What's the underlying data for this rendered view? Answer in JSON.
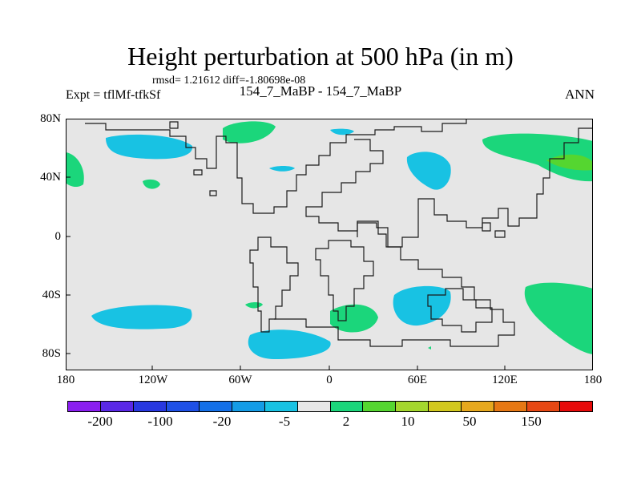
{
  "title": "Height perturbation at 500 hPa (in m)",
  "stats": "rmsd= 1.21612 diff=-1.80698e-08",
  "experiment": "Expt = tflMf-tfkSf",
  "case_label": "154_7_MaBP - 154_7_MaBP",
  "season": "ANN",
  "map": {
    "lat_labels": [
      "80N",
      "40N",
      "0",
      "40S",
      "80S"
    ],
    "lon_labels": [
      "180",
      "120W",
      "60W",
      "0",
      "60E",
      "120E",
      "180"
    ],
    "background": "#e6e6e6",
    "positive_color": "#1bd67b",
    "negative_color": "#18c2e3",
    "strong_positive_color": "#55d630"
  },
  "colorbar": {
    "colors": [
      "#8a1ef0",
      "#5a28e6",
      "#2838e0",
      "#1e50e6",
      "#1470e8",
      "#149ce6",
      "#18c2e3",
      "#e6e6e6",
      "#1bd67b",
      "#55d630",
      "#a4d72e",
      "#d2c81e",
      "#e6a81e",
      "#e67814",
      "#e64814",
      "#e60a0a"
    ],
    "labels": [
      "-200",
      "-100",
      "-20",
      "-5",
      "2",
      "10",
      "50",
      "150"
    ]
  }
}
